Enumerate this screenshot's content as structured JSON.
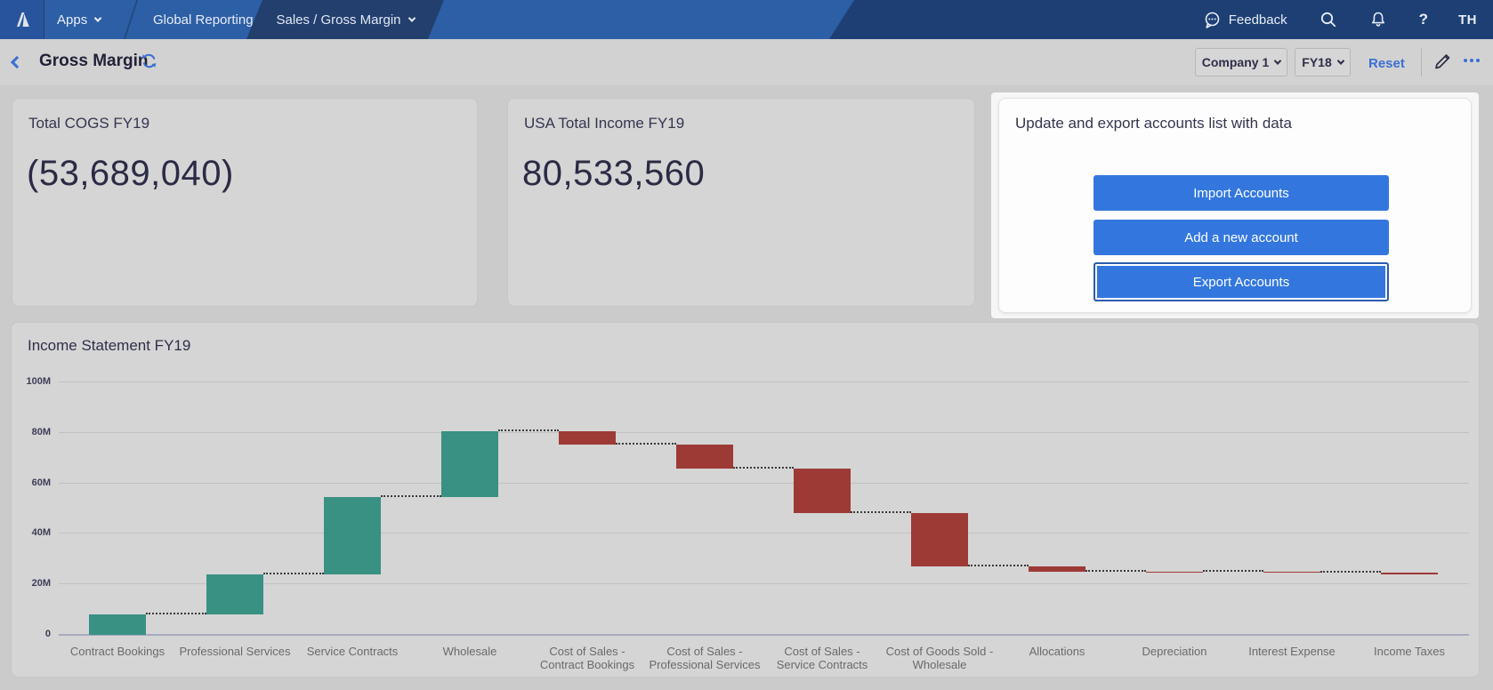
{
  "nav": {
    "apps_label": "Apps",
    "workspace_label": "Global Reporting",
    "page_tab_label": "Sales / Gross Margin",
    "feedback_label": "Feedback",
    "help_label": "?",
    "avatar_initials": "TH",
    "icons": {
      "logo": "anaplan-mark",
      "feedback": "speech-bubble-dots",
      "search": "magnifier",
      "notifications": "bell",
      "dropdown": "chevron-down"
    }
  },
  "toolbar": {
    "title": "Gross Margin",
    "company_selector": "Company 1",
    "period_selector": "FY18",
    "reset_label": "Reset",
    "icons": {
      "back": "chevron-left",
      "refresh": "sync-arrows",
      "edit": "pencil",
      "more": "ellipsis"
    }
  },
  "cards": {
    "kpi1": {
      "title": "Total COGS FY19",
      "value": "(53,689,040)"
    },
    "kpi2": {
      "title": "USA Total Income FY19",
      "value": "80,533,560"
    },
    "actions": {
      "title": "Update and export accounts list with data",
      "buttons": [
        "Import Accounts",
        "Add a new account",
        "Export Accounts"
      ],
      "focused_button": "Export Accounts"
    }
  },
  "chart_data": {
    "type": "bar",
    "subtype": "waterfall",
    "title": "Income Statement FY19",
    "categories": [
      "Contract Bookings",
      "Professional Services",
      "Service Contracts",
      "Wholesale",
      "Cost of Sales - Contract Bookings",
      "Cost of Sales - Professional Services",
      "Cost of Sales - Service Contracts",
      "Cost of Goods Sold - Wholesale",
      "Allocations",
      "Depreciation",
      "Interest Expense",
      "Income Taxes"
    ],
    "values_millions": [
      8.2,
      15.8,
      30.5,
      26.0,
      -5.0,
      -9.6,
      -17.5,
      -21.3,
      -2.0,
      -0.2,
      -0.2,
      -0.6
    ],
    "cumulative_end_millions": [
      8.2,
      24.0,
      54.5,
      80.5,
      75.5,
      65.9,
      48.4,
      27.1,
      25.1,
      24.9,
      24.7,
      24.1
    ],
    "ylabel": "",
    "xlabel": "",
    "ylim_millions": [
      0,
      100
    ],
    "yticks": [
      "0",
      "20M",
      "40M",
      "60M",
      "80M",
      "100M"
    ],
    "grid": true,
    "legend": false,
    "colors": {
      "increase": "#399183",
      "decrease": "#9d3a36",
      "connector": "#3b3b3b"
    }
  },
  "colors": {
    "nav_blue": "#2d5fa6",
    "nav_dark": "#1d3f74",
    "tab_dark": "#223f6e",
    "accent_button_blue": "#3377de",
    "link_blue": "#3b6fd4",
    "increase_green": "#399183",
    "decrease_red": "#9d3a36"
  }
}
